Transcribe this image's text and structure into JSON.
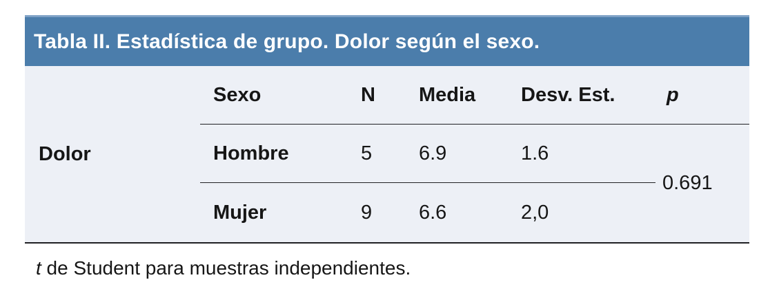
{
  "title": "Tabla II. Estadística de grupo. Dolor según el sexo.",
  "colors": {
    "header_bg": "#4b7dab",
    "header_top_edge": "#7fa2c6",
    "body_bg": "#edf0f6",
    "text": "#161616",
    "title_text": "#ffffff",
    "rule": "#1f1f22"
  },
  "table": {
    "row_group_label": "Dolor",
    "columns": {
      "sexo": "Sexo",
      "n": "N",
      "media": "Media",
      "desv": "Desv. Est.",
      "p": "p"
    },
    "rows": [
      {
        "sexo": "Hombre",
        "n": "5",
        "media": "6.9",
        "desv": "1.6"
      },
      {
        "sexo": "Mujer",
        "n": "9",
        "media": "6.6",
        "desv": "2,0"
      }
    ],
    "p_value": "0.691"
  },
  "footnote": {
    "prefix": "t",
    "rest": " de Student para muestras independientes."
  }
}
